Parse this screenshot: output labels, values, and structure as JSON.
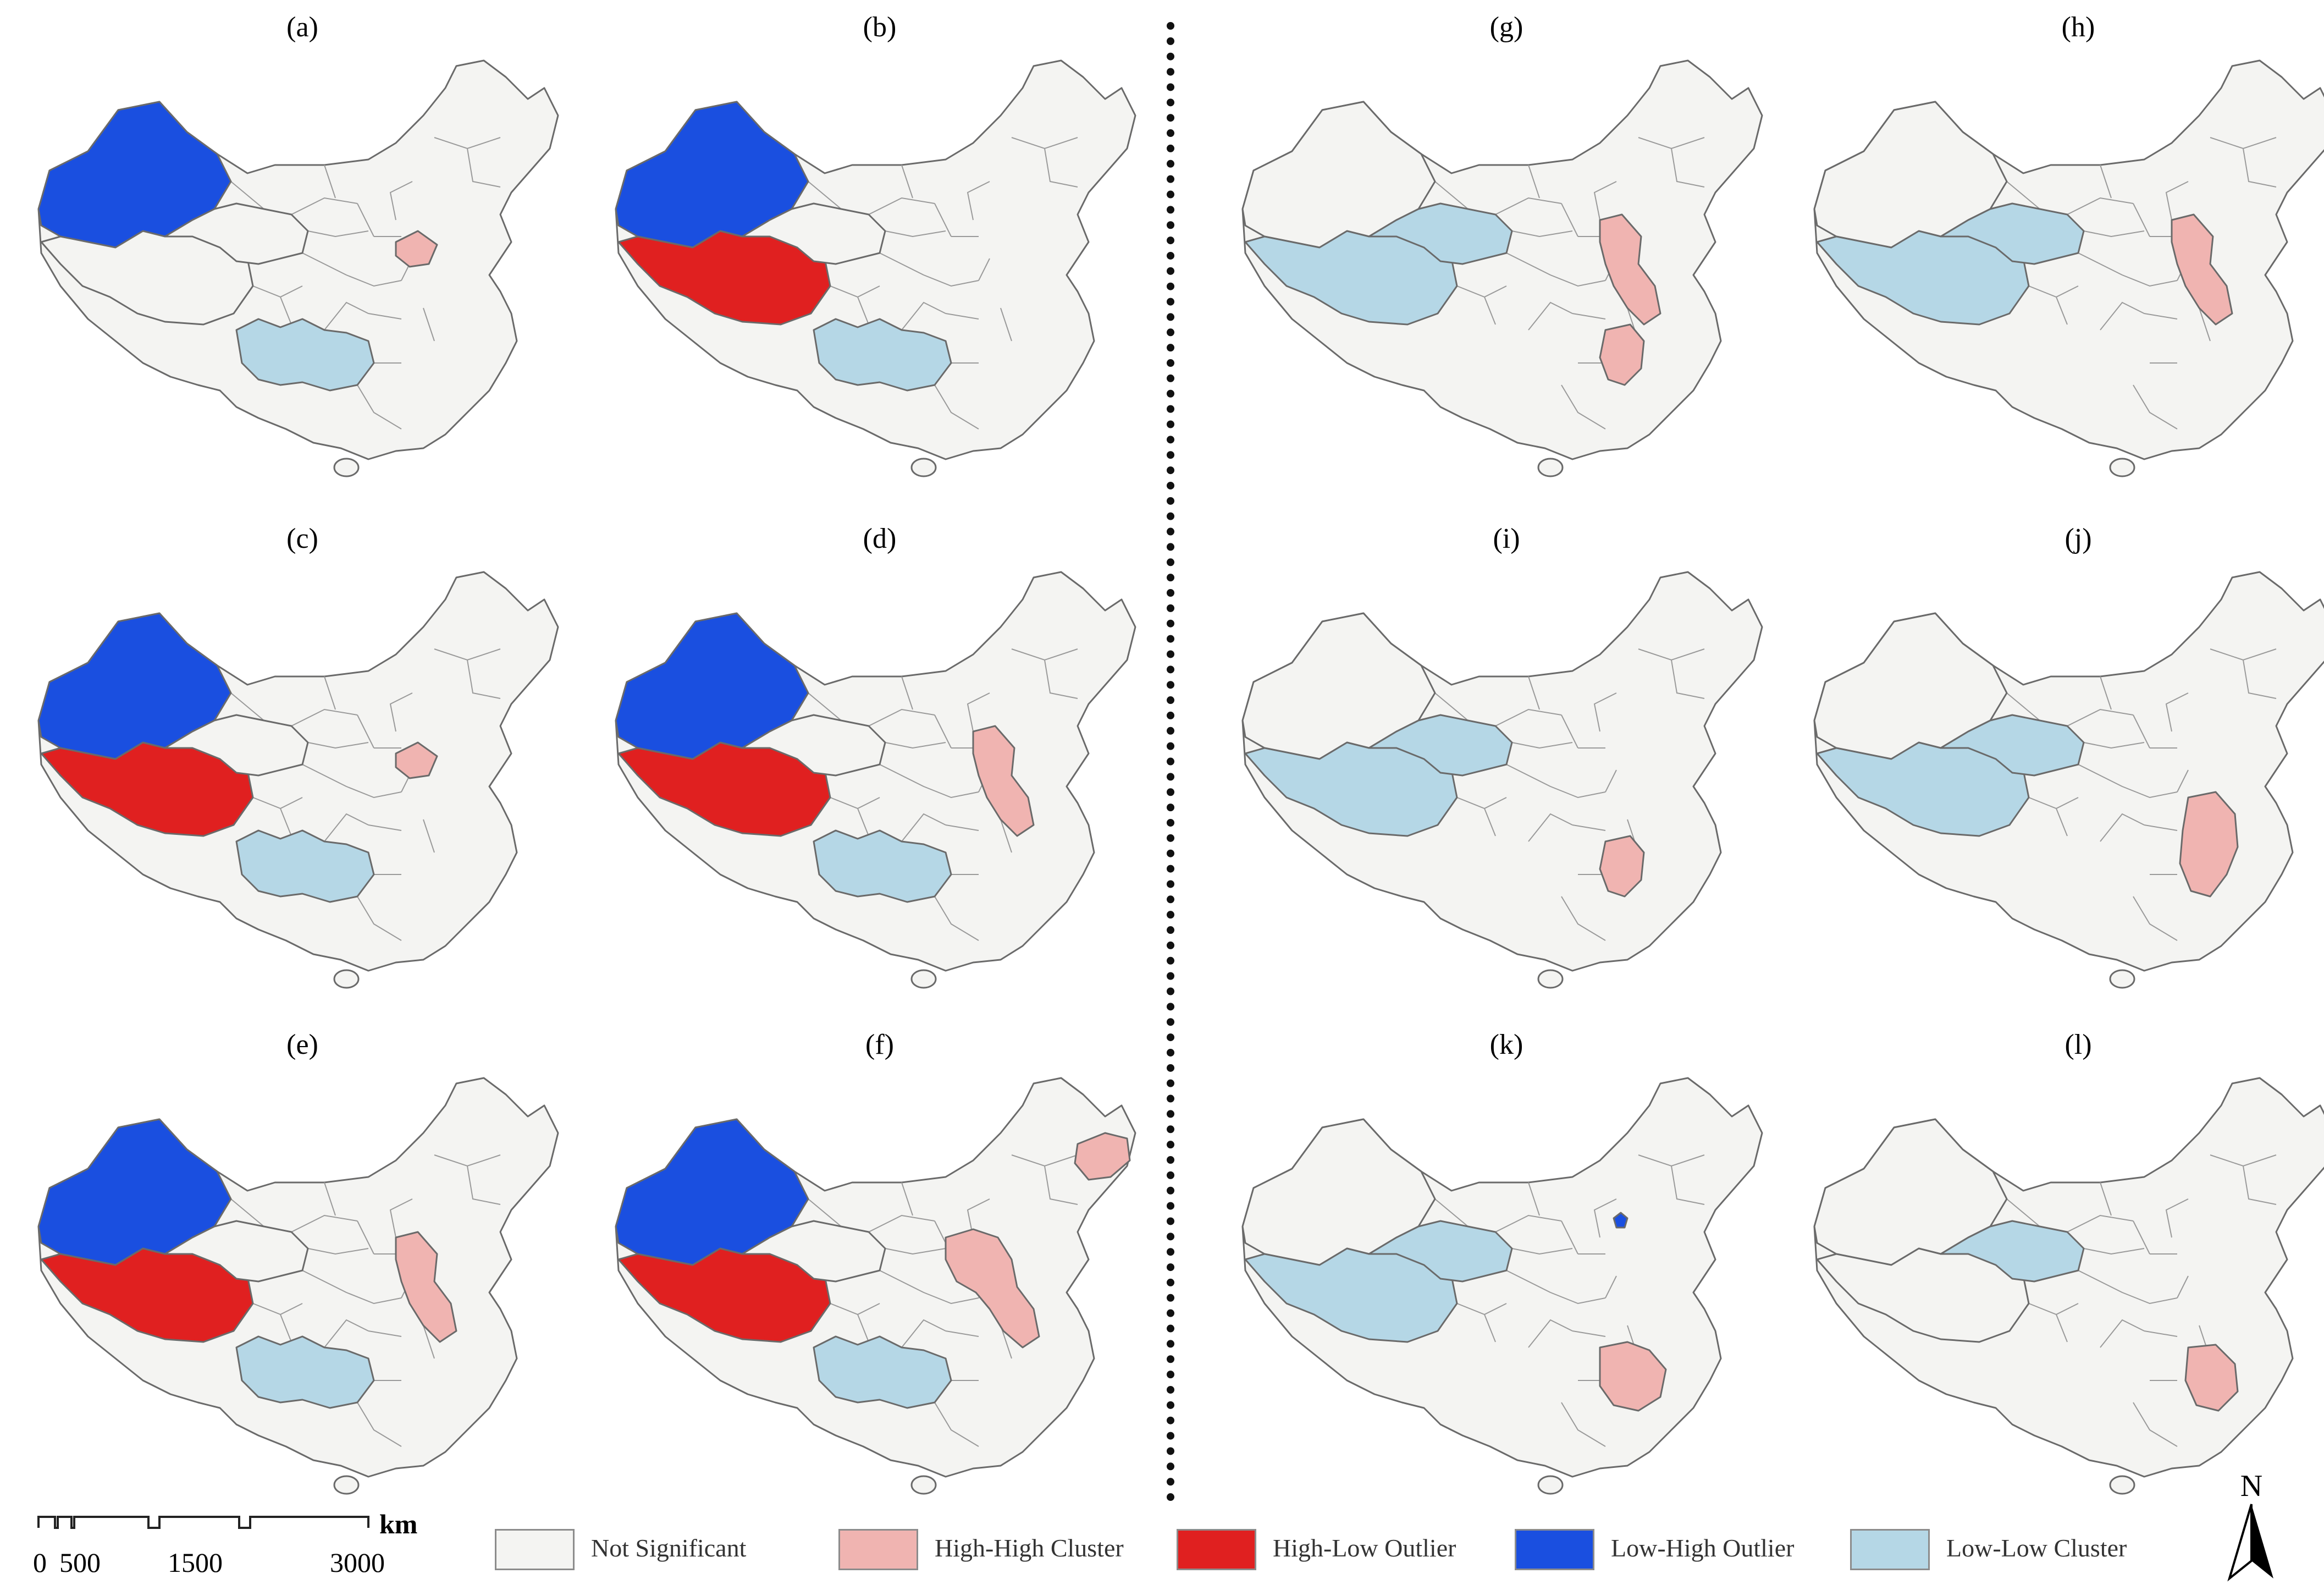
{
  "colors": {
    "not_significant": "#f4f4f2",
    "high_high_cluster": "#f0b4b1",
    "high_low_outlier": "#e02020",
    "low_high_outlier": "#1a4fe0",
    "low_low_cluster": "#b5d7e6",
    "outline": "#6a6a6a"
  },
  "panels": [
    {
      "label": "(a)",
      "xinjiang": "low_high_outlier",
      "tibet": "not_significant",
      "qinghai": "not_significant",
      "southwest": "low_low_cluster",
      "north_coast": "small",
      "southeast": "none",
      "northeast": false,
      "beijing": "none"
    },
    {
      "label": "(b)",
      "xinjiang": "low_high_outlier",
      "tibet": "high_low_outlier",
      "qinghai": "not_significant",
      "southwest": "low_low_cluster",
      "north_coast": "none",
      "southeast": "none",
      "northeast": false,
      "beijing": "none"
    },
    {
      "label": "(c)",
      "xinjiang": "low_high_outlier",
      "tibet": "high_low_outlier",
      "qinghai": "not_significant",
      "southwest": "low_low_cluster",
      "north_coast": "small",
      "southeast": "none",
      "northeast": false,
      "beijing": "none"
    },
    {
      "label": "(d)",
      "xinjiang": "low_high_outlier",
      "tibet": "high_low_outlier",
      "qinghai": "not_significant",
      "southwest": "low_low_cluster",
      "north_coast": "medium",
      "southeast": "none",
      "northeast": false,
      "beijing": "none"
    },
    {
      "label": "(e)",
      "xinjiang": "low_high_outlier",
      "tibet": "high_low_outlier",
      "qinghai": "not_significant",
      "southwest": "low_low_cluster",
      "north_coast": "medium",
      "southeast": "none",
      "northeast": false,
      "beijing": "none"
    },
    {
      "label": "(f)",
      "xinjiang": "low_high_outlier",
      "tibet": "high_low_outlier",
      "qinghai": "not_significant",
      "southwest": "low_low_cluster",
      "north_coast": "large",
      "southeast": "none",
      "northeast": true,
      "beijing": "none"
    },
    {
      "label": "(g)",
      "xinjiang": "not_significant",
      "tibet": "low_low_cluster",
      "qinghai": "low_low_cluster",
      "southwest": "none",
      "north_coast": "medium",
      "southeast": "jiangxi",
      "northeast": false,
      "beijing": "none"
    },
    {
      "label": "(h)",
      "xinjiang": "not_significant",
      "tibet": "low_low_cluster",
      "qinghai": "low_low_cluster",
      "southwest": "none",
      "north_coast": "medium",
      "southeast": "none",
      "northeast": false,
      "beijing": "none"
    },
    {
      "label": "(i)",
      "xinjiang": "not_significant",
      "tibet": "low_low_cluster",
      "qinghai": "low_low_cluster",
      "southwest": "none",
      "north_coast": "none",
      "southeast": "jiangxi",
      "northeast": false,
      "beijing": "none"
    },
    {
      "label": "(j)",
      "xinjiang": "not_significant",
      "tibet": "low_low_cluster",
      "qinghai": "low_low_cluster",
      "southwest": "none",
      "north_coast": "none",
      "southeast": "east_coast",
      "northeast": false,
      "beijing": "none"
    },
    {
      "label": "(k)",
      "xinjiang": "not_significant",
      "tibet": "low_low_cluster",
      "qinghai": "low_low_cluster",
      "southwest": "none",
      "north_coast": "none",
      "southeast": "jiangxi_fujian",
      "northeast": false,
      "beijing": "low_high_outlier"
    },
    {
      "label": "(l)",
      "xinjiang": "not_significant",
      "tibet": "not_significant",
      "qinghai": "low_low_cluster",
      "southwest": "none",
      "north_coast": "none",
      "southeast": "fujian",
      "northeast": false,
      "beijing": "none"
    }
  ],
  "legend": [
    {
      "label": "Not Significant",
      "color_key": "not_significant"
    },
    {
      "label": "High-High Cluster",
      "color_key": "high_high_cluster"
    },
    {
      "label": "High-Low Outlier",
      "color_key": "high_low_outlier"
    },
    {
      "label": "Low-High Outlier",
      "color_key": "low_high_outlier"
    },
    {
      "label": "Low-Low Cluster",
      "color_key": "low_low_cluster"
    }
  ],
  "scale_bar": {
    "unit": "km",
    "ticks": [
      "0",
      "500",
      "1500",
      "3000"
    ]
  },
  "north_arrow": {
    "label": "N"
  }
}
